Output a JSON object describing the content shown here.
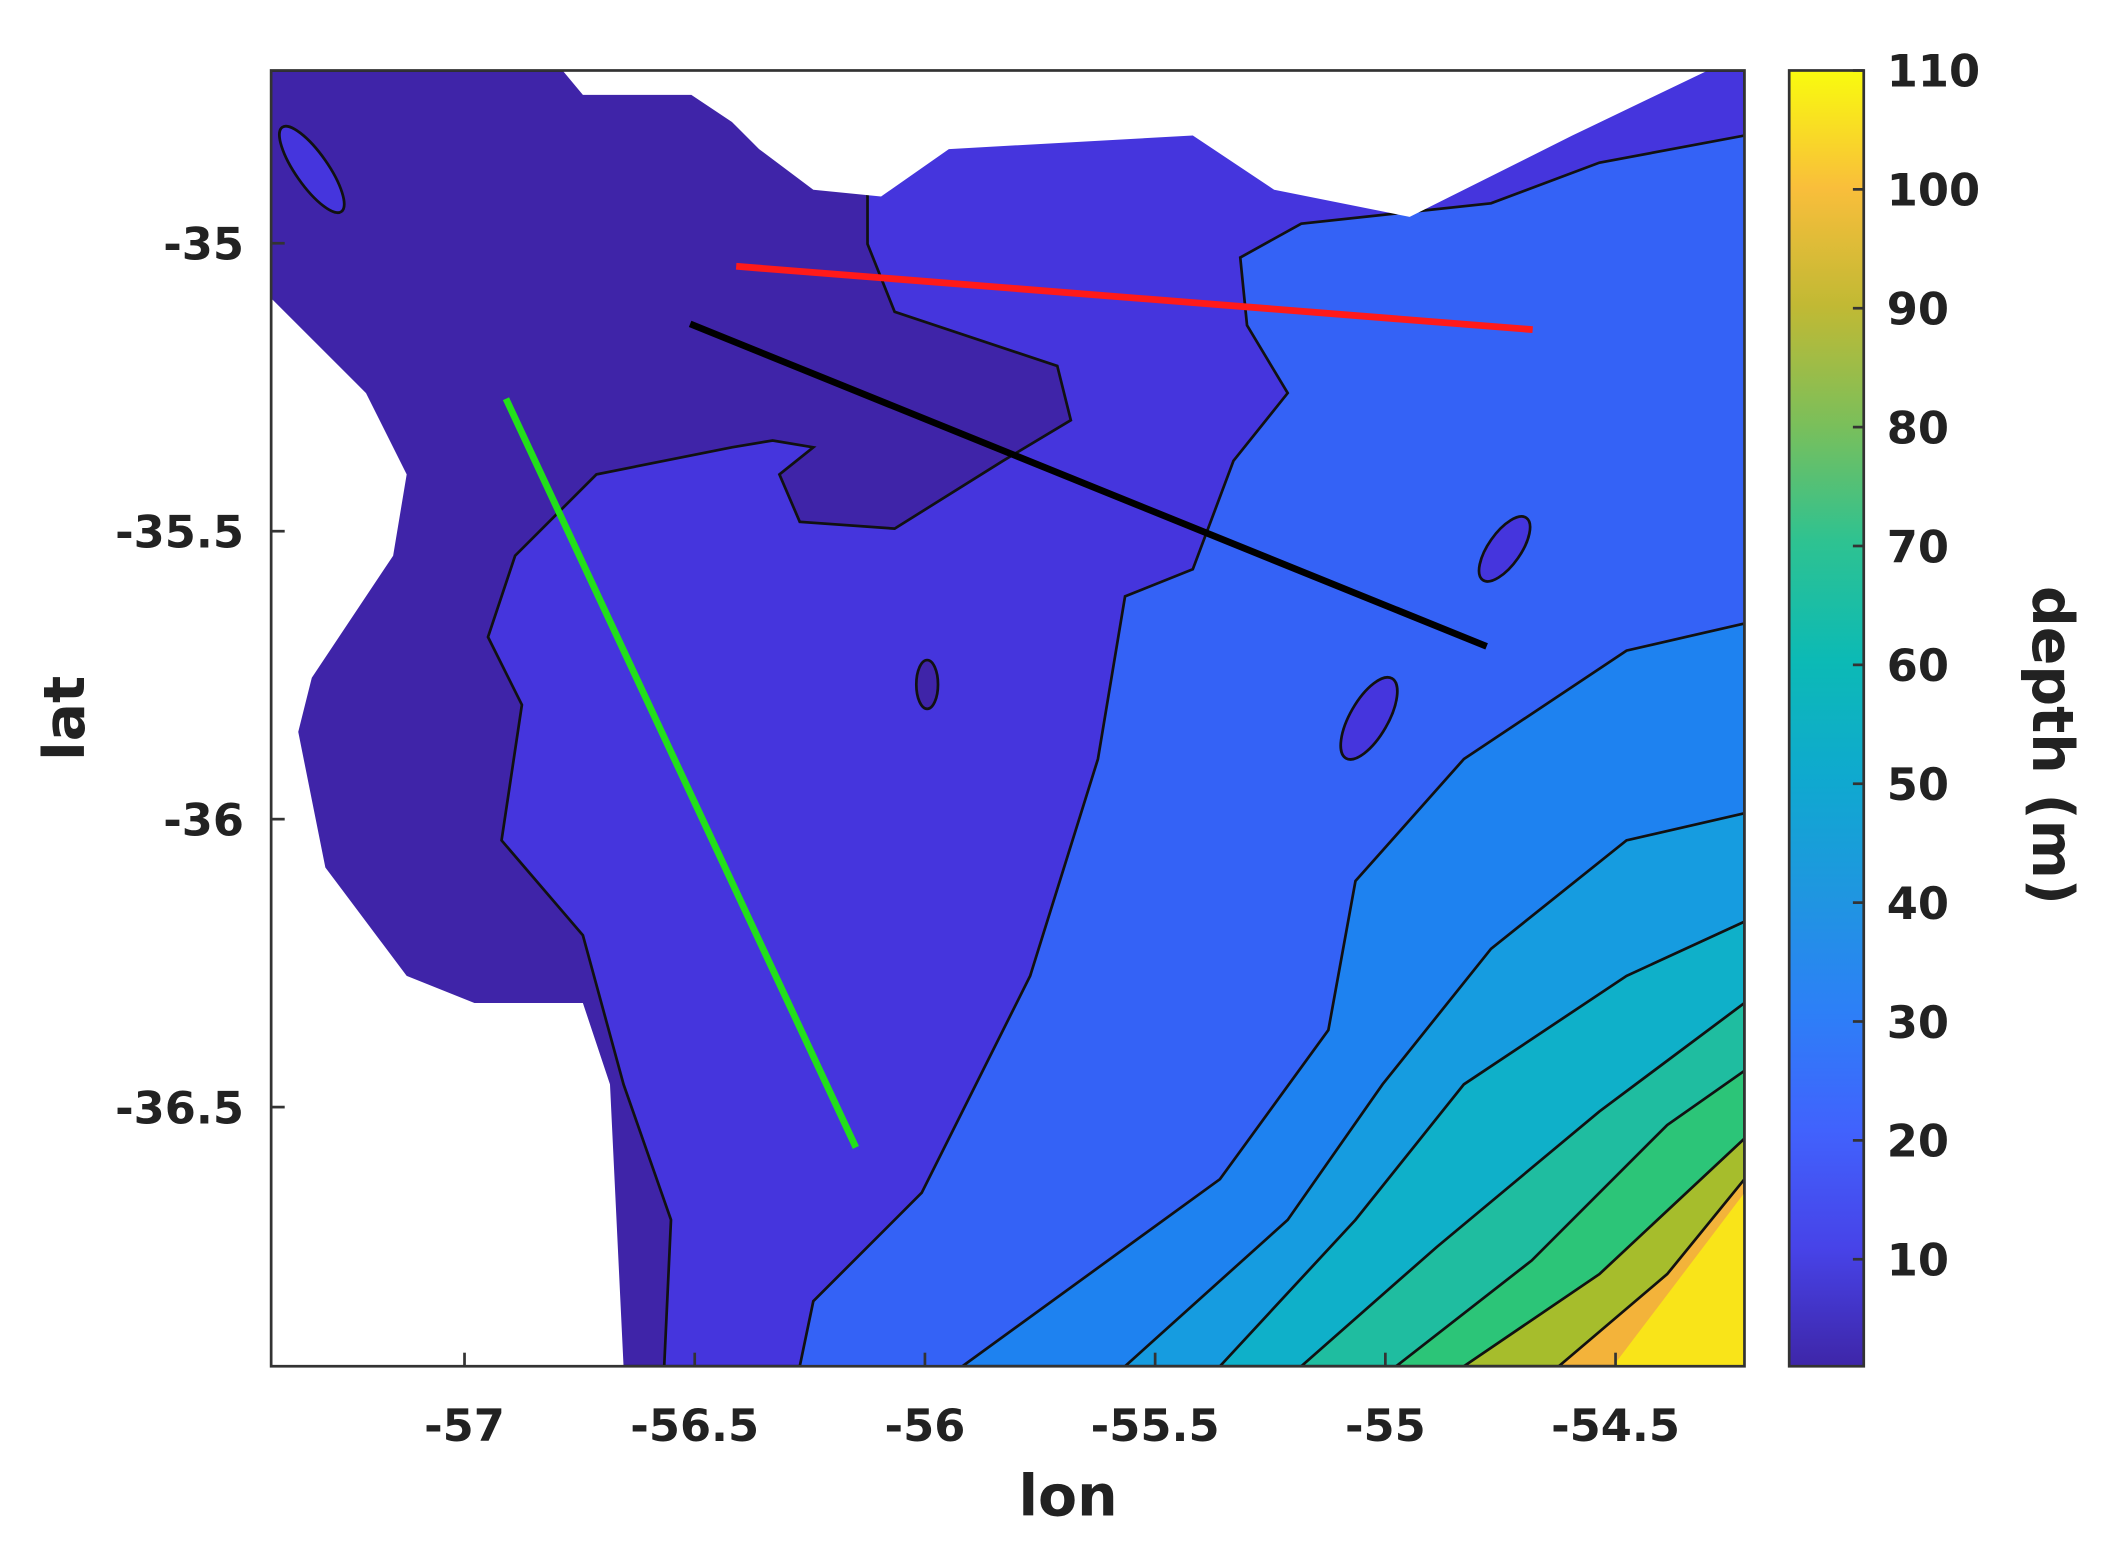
{
  "chart_data": {
    "type": "contour",
    "xlabel": "lon",
    "ylabel": "lat",
    "xlim": [
      -57.42,
      -54.22
    ],
    "ylim": [
      -36.95,
      -34.7
    ],
    "xticks": [
      -57,
      -56.5,
      -56,
      -55.5,
      -55,
      -54.5
    ],
    "yticks": [
      -36.5,
      -36,
      -35.5,
      -35
    ],
    "colorbar": {
      "label": "depth (m)",
      "clim": [
        1,
        110
      ],
      "ticks": [
        10,
        20,
        30,
        40,
        50,
        60,
        70,
        80,
        90,
        100,
        110
      ]
    },
    "lines": [
      {
        "color": "#ff1a1a",
        "x": [
          -56.41,
          -54.68
        ],
        "y": [
          -35.04,
          -35.15
        ]
      },
      {
        "color": "#000000",
        "x": [
          -56.51,
          -54.78
        ],
        "y": [
          -35.14,
          -35.7
        ]
      },
      {
        "color": "#22e01a",
        "x": [
          -56.91,
          -56.15
        ],
        "y": [
          -35.27,
          -36.57
        ]
      }
    ]
  }
}
